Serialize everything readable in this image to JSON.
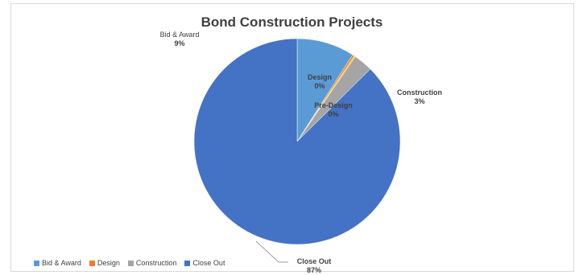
{
  "chart_data": {
    "type": "pie",
    "title": "Bond Construction Projects",
    "categories": [
      "Bid & Award",
      "Design",
      "Pre-Design",
      "Construction",
      "Close Out"
    ],
    "values": [
      9,
      0.3,
      0.2,
      3,
      87
    ],
    "labels": [
      {
        "name": "Bid & Award",
        "percent": "9%"
      },
      {
        "name": "Design",
        "percent": "0%"
      },
      {
        "name": "Pre-Design",
        "percent": "0%"
      },
      {
        "name": "Construction",
        "percent": "3%"
      },
      {
        "name": "Close Out",
        "percent": "87%"
      }
    ],
    "colors": [
      "#5b9bd5",
      "#ed7d31",
      "#ffc000",
      "#a5a5a5",
      "#4472c4"
    ],
    "legend": {
      "placement": "bottom-left",
      "items": [
        {
          "label": "Bid & Award",
          "color": "#5b9bd5"
        },
        {
          "label": "Design",
          "color": "#ed7d31"
        },
        {
          "label": "Construction",
          "color": "#a5a5a5"
        },
        {
          "label": "Close Out",
          "color": "#4472c4"
        }
      ]
    }
  }
}
